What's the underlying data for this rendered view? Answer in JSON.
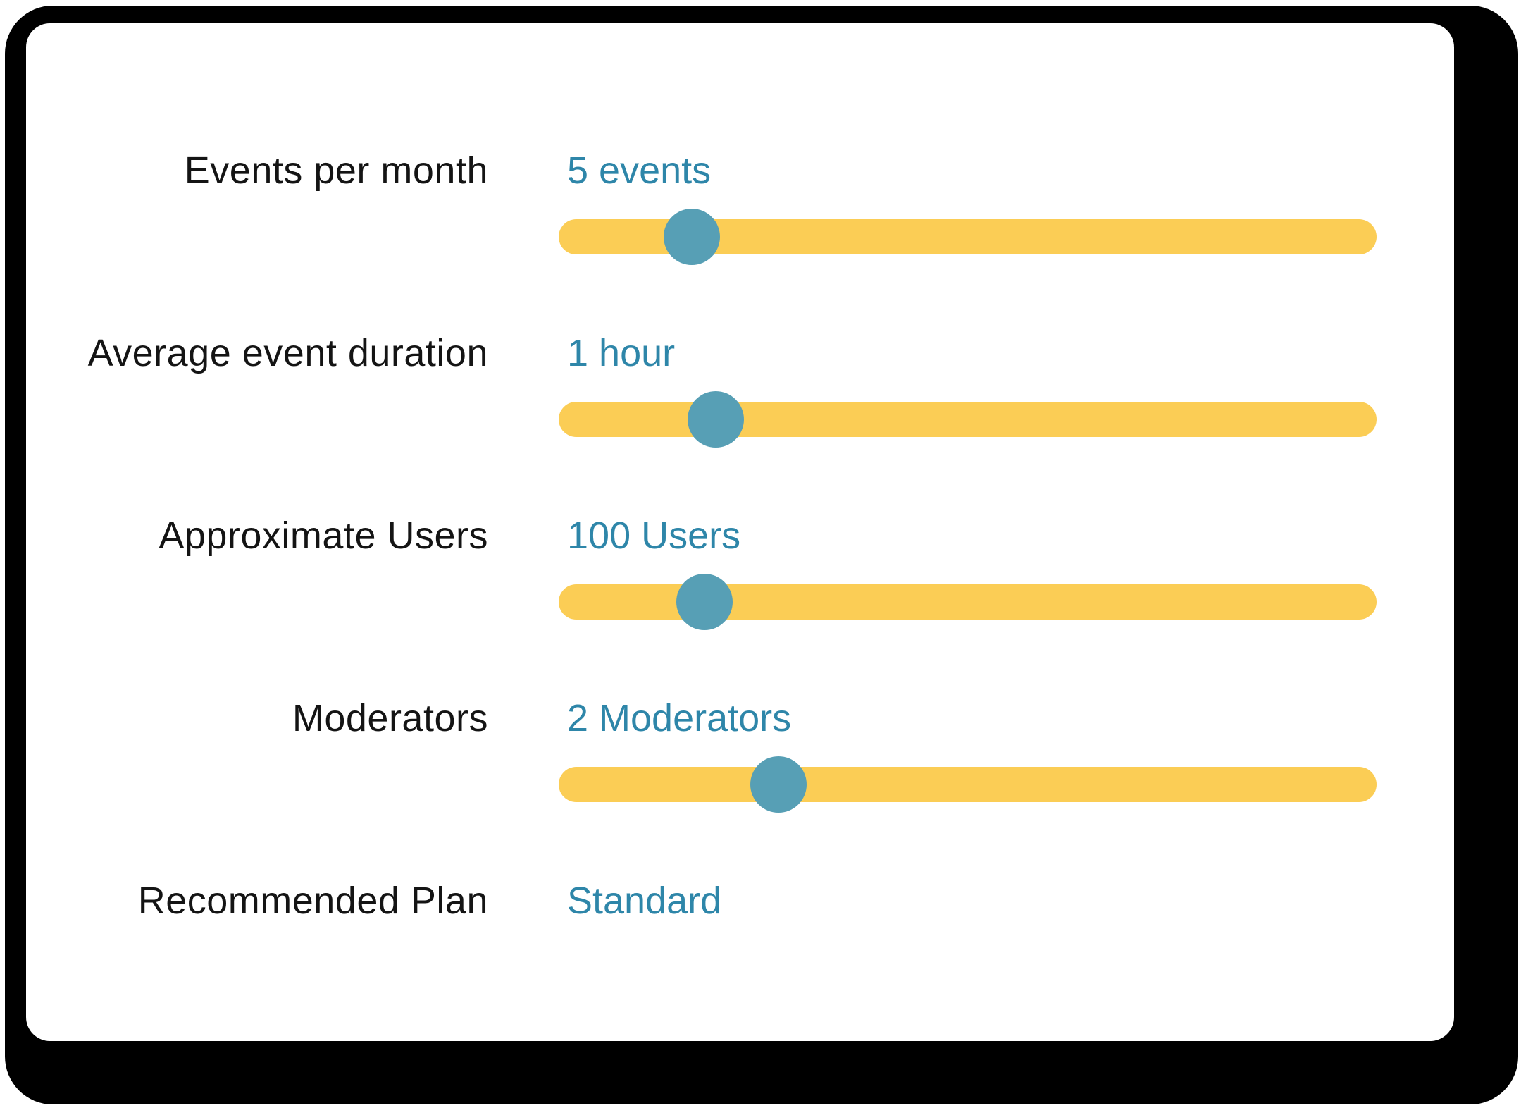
{
  "rows": [
    {
      "label": "Events per month",
      "value": "5 events",
      "slider": {
        "percent": 16.3
      }
    },
    {
      "label": "Average event duration",
      "value": "1 hour",
      "slider": {
        "percent": 19.2
      }
    },
    {
      "label": "Approximate Users",
      "value": "100 Users",
      "slider": {
        "percent": 17.8
      }
    },
    {
      "label": "Moderators",
      "value": "2 Moderators",
      "slider": {
        "percent": 26.9
      }
    },
    {
      "label": "Recommended Plan",
      "value": "Standard"
    }
  ],
  "colors": {
    "frame": "#000000",
    "card_bg": "#ffffff",
    "label_text": "#141414",
    "value_text": "#2E86A9",
    "track": "#FBCD55",
    "thumb": "#579FB5"
  }
}
